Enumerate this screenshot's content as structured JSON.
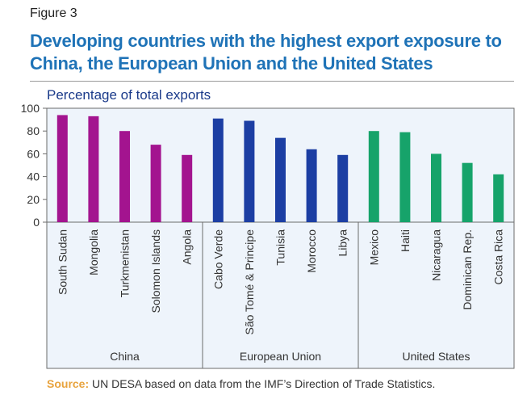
{
  "figure_label": "Figure 3",
  "title": "Developing countries with the highest export exposure to China, the European Union and the United States",
  "subtitle": "Percentage of total exports",
  "source": {
    "label": "Source:",
    "text": "UN DESA based on data from the IMF’s Direction of Trade Statistics."
  },
  "colors": {
    "title": "#1f73b7",
    "China": "#a3148f",
    "European Union": "#1c3ea3",
    "United States": "#16a36a",
    "source_label": "#e8a33d"
  },
  "chart_data": {
    "type": "bar",
    "title": "",
    "xlabel": "",
    "ylabel": "Percentage of total exports",
    "ylim": [
      0,
      100
    ],
    "yticks": [
      0,
      20,
      40,
      60,
      80,
      100
    ],
    "grid": false,
    "legend": "none",
    "groups": [
      {
        "name": "China",
        "categories": [
          "South Sudan",
          "Mongolia",
          "Turkmenistan",
          "Solomon Islands",
          "Angola"
        ],
        "values": [
          94,
          93,
          80,
          68,
          59
        ]
      },
      {
        "name": "European Union",
        "categories": [
          "Cabo Verde",
          "São Tomé & Principe",
          "Tunisia",
          "Morocco",
          "Libya"
        ],
        "values": [
          91,
          89,
          74,
          64,
          59
        ]
      },
      {
        "name": "United States",
        "categories": [
          "Mexico",
          "Haiti",
          "Nicaragua",
          "Dominican Rep.",
          "Costa Rica"
        ],
        "values": [
          80,
          79,
          60,
          52,
          42
        ]
      }
    ]
  }
}
